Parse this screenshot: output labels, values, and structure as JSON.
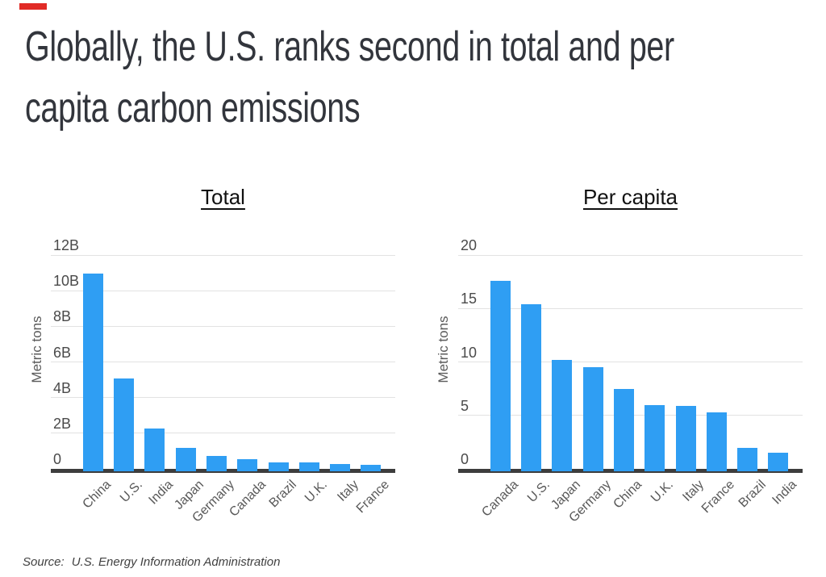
{
  "accent_color": "#E12B26",
  "title_lines": [
    "Globally, the U.S. ranks second in total and per",
    "capita carbon emissions"
  ],
  "source": {
    "label": "Source:",
    "text": "U.S. Energy Information Administration"
  },
  "chart_data": [
    {
      "type": "bar",
      "title": "Total",
      "ylabel": "Metric tons",
      "categories": [
        "China",
        "U.S.",
        "India",
        "Japan",
        "Germany",
        "Canada",
        "Brazil",
        "U.K.",
        "Italy",
        "France"
      ],
      "values": [
        11.1,
        5.2,
        2.4,
        1.3,
        0.85,
        0.7,
        0.5,
        0.48,
        0.4,
        0.38
      ],
      "ylim": [
        0,
        12
      ],
      "ytick_values": [
        0,
        2,
        4,
        6,
        8,
        10,
        12
      ],
      "ytick_labels": [
        "0",
        "2B",
        "4B",
        "6B",
        "8B",
        "10B",
        "12B"
      ],
      "bar_color": "#2F9EF3",
      "grid": true,
      "legend": null
    },
    {
      "type": "bar",
      "title": "Per capita",
      "ylabel": "Metric tons",
      "categories": [
        "Canada",
        "U.S.",
        "Japan",
        "Germany",
        "China",
        "U.K.",
        "Italy",
        "France",
        "Brazil",
        "India"
      ],
      "values": [
        17.8,
        15.6,
        10.4,
        9.7,
        7.7,
        6.2,
        6.1,
        5.5,
        2.2,
        1.7
      ],
      "ylim": [
        0,
        20
      ],
      "ytick_values": [
        0,
        5,
        10,
        15,
        20
      ],
      "ytick_labels": [
        "0",
        "5",
        "10",
        "15",
        "20"
      ],
      "bar_color": "#2F9EF3",
      "grid": true,
      "legend": null
    }
  ]
}
